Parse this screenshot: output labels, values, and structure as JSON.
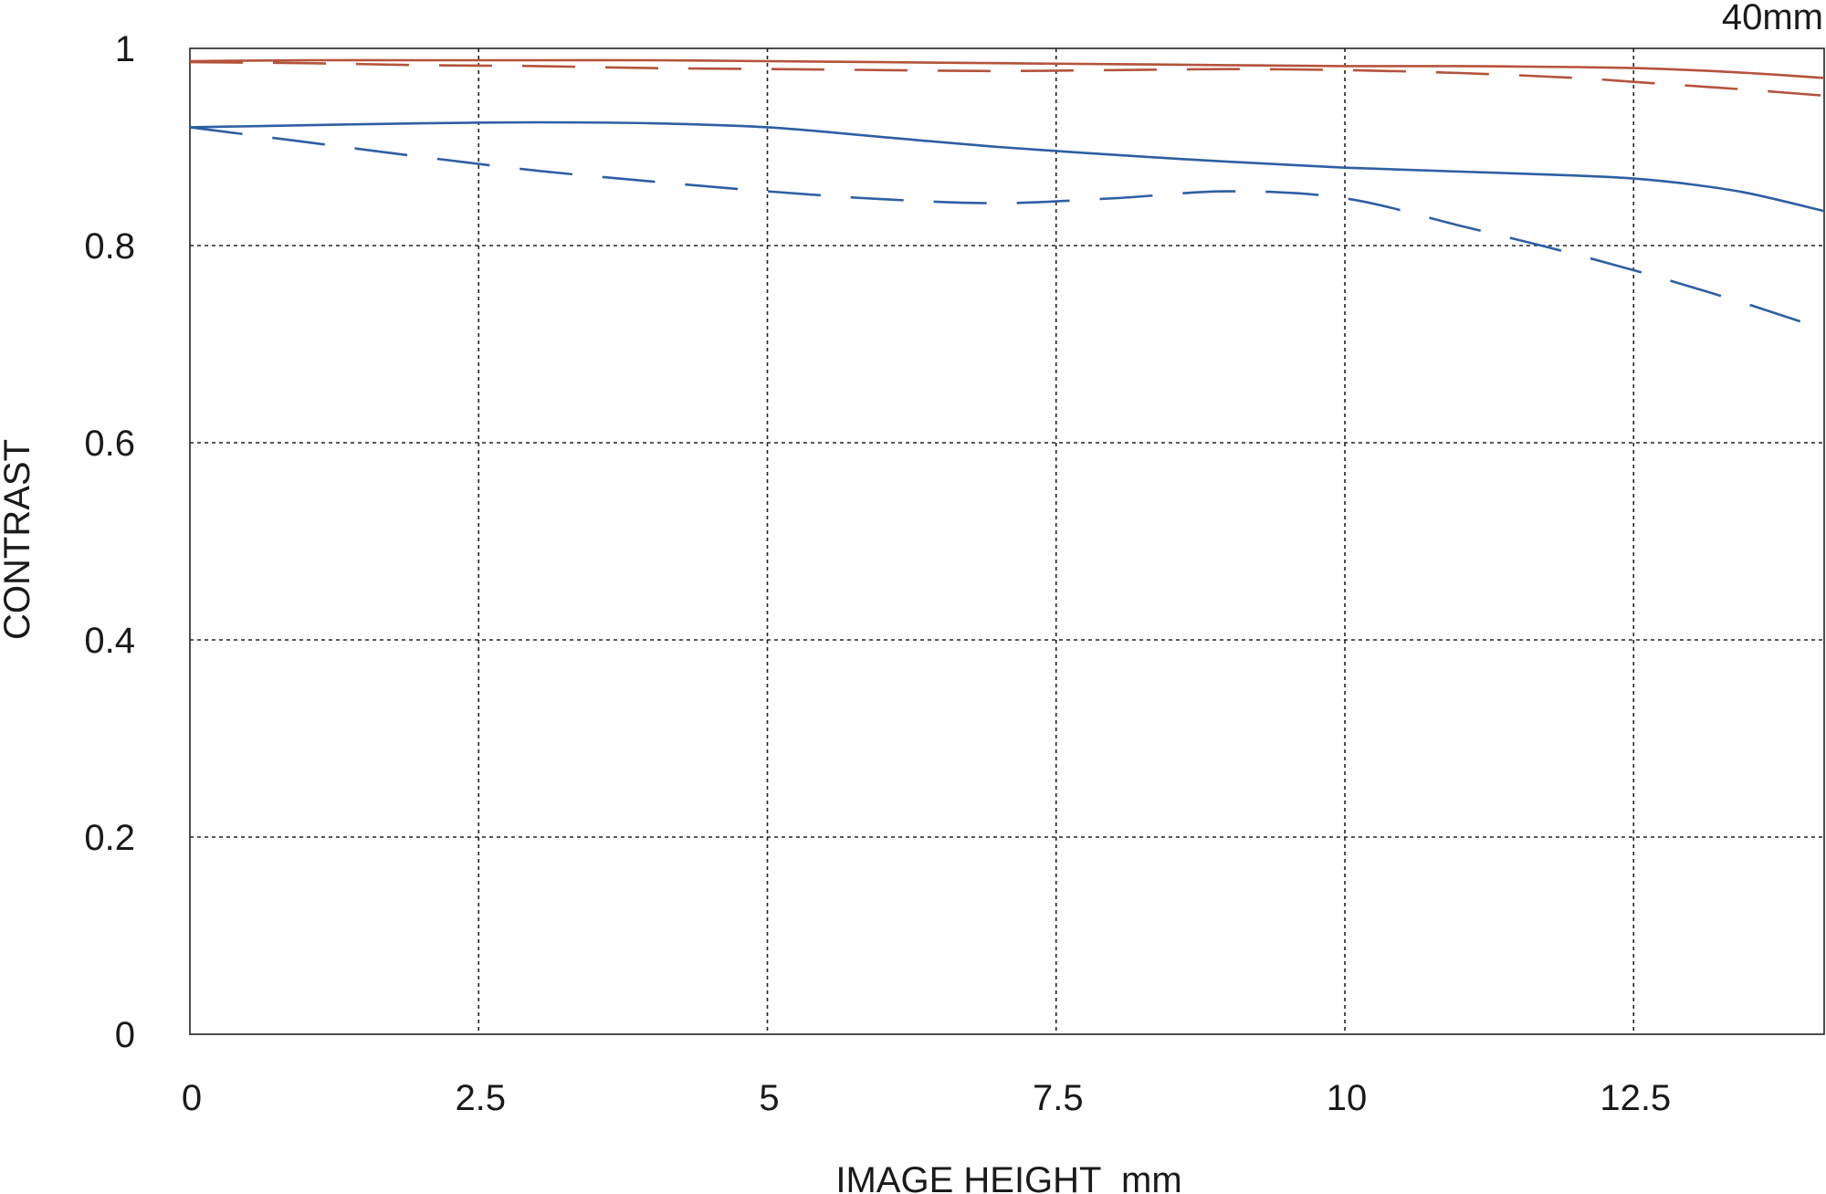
{
  "chart_data": {
    "type": "line",
    "title": "",
    "corner_label": "40mm",
    "xlabel": "IMAGE HEIGHT  mm",
    "ylabel": "CONTRAST",
    "xlim": [
      0,
      14.15
    ],
    "ylim": [
      0,
      1
    ],
    "x_ticks": [
      0,
      2.5,
      5,
      7.5,
      10,
      12.5
    ],
    "x_tick_labels": [
      "0",
      "2.5",
      "5",
      "7.5",
      "10",
      "12.5"
    ],
    "y_ticks": [
      0,
      0.2,
      0.4,
      0.6,
      0.8,
      1
    ],
    "y_tick_labels": [
      "0",
      "0.2",
      "0.4",
      "0.6",
      "0.8",
      "1"
    ],
    "grid": true,
    "series": [
      {
        "color": "#b5533c",
        "style": "solid",
        "x": [
          0,
          1,
          2,
          3,
          4,
          5,
          6,
          7,
          8,
          9,
          10,
          11,
          12,
          12.5,
          13,
          13.5,
          14.15
        ],
        "y": [
          0.987,
          0.988,
          0.988,
          0.988,
          0.988,
          0.987,
          0.986,
          0.985,
          0.984,
          0.983,
          0.982,
          0.982,
          0.981,
          0.98,
          0.978,
          0.975,
          0.97
        ]
      },
      {
        "color": "#b5533c",
        "style": "dashed",
        "x": [
          0,
          1,
          2,
          3,
          4,
          5,
          6,
          7,
          8,
          9,
          10,
          11,
          12,
          12.5,
          13,
          13.5,
          14.15
        ],
        "y": [
          0.986,
          0.985,
          0.983,
          0.982,
          0.98,
          0.979,
          0.978,
          0.977,
          0.978,
          0.979,
          0.978,
          0.975,
          0.97,
          0.966,
          0.962,
          0.958,
          0.952
        ]
      },
      {
        "color": "#2e5fa3",
        "style": "solid",
        "x": [
          0,
          1,
          2,
          3,
          4,
          5,
          6,
          7,
          8,
          9,
          10,
          11,
          12,
          12.5,
          13,
          13.5,
          14.15
        ],
        "y": [
          0.92,
          0.922,
          0.924,
          0.925,
          0.924,
          0.92,
          0.91,
          0.9,
          0.892,
          0.885,
          0.879,
          0.875,
          0.871,
          0.868,
          0.862,
          0.853,
          0.835
        ]
      },
      {
        "color": "#2e5fa3",
        "style": "dashed",
        "x": [
          0,
          1,
          2,
          3,
          4,
          5,
          6,
          7,
          8,
          9,
          10,
          11,
          11.8,
          12.5,
          13,
          13.5,
          14.15
        ],
        "y": [
          0.92,
          0.905,
          0.89,
          0.876,
          0.865,
          0.855,
          0.847,
          0.843,
          0.848,
          0.855,
          0.848,
          0.82,
          0.797,
          0.775,
          0.758,
          0.74,
          0.715
        ]
      }
    ]
  }
}
